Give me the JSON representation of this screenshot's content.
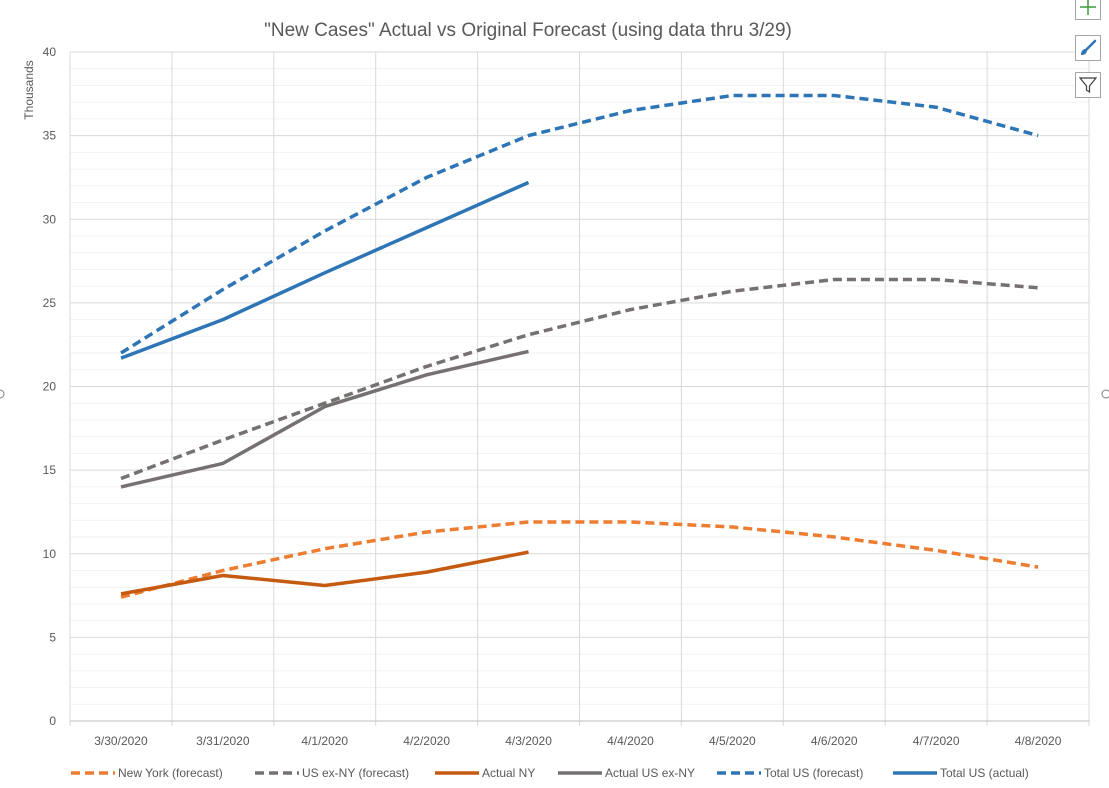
{
  "chart_data": {
    "type": "line",
    "title": "\"New Cases\" Actual vs Original Forecast (using data thru 3/29)",
    "xlabel": "",
    "ylabel": "Thousands",
    "ylim": [
      0,
      40
    ],
    "yticks": [
      0,
      5,
      10,
      15,
      20,
      25,
      30,
      35,
      40
    ],
    "grid": true,
    "minor_grid": true,
    "legend_position": "bottom",
    "categories": [
      "3/30/2020",
      "3/31/2020",
      "4/1/2020",
      "4/2/2020",
      "4/3/2020",
      "4/4/2020",
      "4/5/2020",
      "4/6/2020",
      "4/7/2020",
      "4/8/2020"
    ],
    "series": [
      {
        "name": "New York (forecast)",
        "color": "#ED7D31",
        "style": "dashed",
        "values": [
          7.4,
          9.0,
          10.3,
          11.3,
          11.9,
          11.9,
          11.6,
          11.0,
          10.2,
          9.2
        ]
      },
      {
        "name": "US ex-NY (forecast)",
        "color": "#767171",
        "style": "dashed",
        "values": [
          14.5,
          16.8,
          19.0,
          21.2,
          23.1,
          24.6,
          25.7,
          26.4,
          26.4,
          25.9
        ]
      },
      {
        "name": "Actual NY",
        "color": "#C55A11",
        "style": "solid",
        "values": [
          7.6,
          8.7,
          8.1,
          8.9,
          10.1,
          null,
          null,
          null,
          null,
          null
        ]
      },
      {
        "name": "Actual US ex-NY",
        "color": "#767171",
        "style": "solid",
        "values": [
          14.0,
          15.4,
          18.8,
          20.7,
          22.1,
          null,
          null,
          null,
          null,
          null
        ]
      },
      {
        "name": "Total US (forecast)",
        "color": "#2E75B6",
        "style": "dashed",
        "values": [
          22.0,
          25.8,
          29.3,
          32.5,
          35.0,
          36.5,
          37.4,
          37.4,
          36.7,
          35.0
        ]
      },
      {
        "name": "Total US (actual)",
        "color": "#2E75B6",
        "style": "solid",
        "values": [
          21.7,
          24.0,
          26.8,
          29.5,
          32.2,
          null,
          null,
          null,
          null,
          null
        ]
      }
    ]
  },
  "ui": {
    "add_element_icon": "plus-icon",
    "chart_styles_icon": "paintbrush-icon",
    "chart_filters_icon": "funnel-icon"
  }
}
